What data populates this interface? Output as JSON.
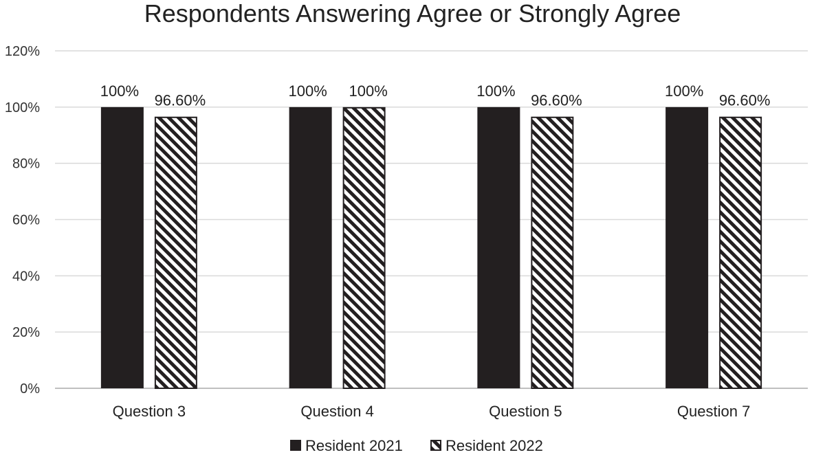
{
  "chart_data": {
    "type": "bar",
    "title": "Respondents Answering Agree or Strongly Agree",
    "categories": [
      "Question 3",
      "Question 4",
      "Question 5",
      "Question 7"
    ],
    "series": [
      {
        "name": "Resident 2021",
        "values": [
          100,
          100,
          100,
          100
        ],
        "labels": [
          "100%",
          "100%",
          "100%",
          "100%"
        ],
        "fill": "#231f20",
        "pattern": "solid"
      },
      {
        "name": "Resident 2022",
        "values": [
          96.6,
          100,
          96.6,
          96.6
        ],
        "labels": [
          "96.60%",
          "100%",
          "96.60%",
          "96.60%"
        ],
        "fill": "#231f20",
        "pattern": "diagonal-stripes"
      }
    ],
    "ylim": [
      0,
      120
    ],
    "yticks": [
      0,
      20,
      40,
      60,
      80,
      100,
      120
    ],
    "ytick_labels": [
      "0%",
      "20%",
      "40%",
      "60%",
      "80%",
      "100%",
      "120%"
    ],
    "grid": true,
    "legend_position": "bottom-center",
    "colors": {
      "bar": "#231f20",
      "grid": "#d9d9d9",
      "axis": "#bfbfbf"
    }
  }
}
